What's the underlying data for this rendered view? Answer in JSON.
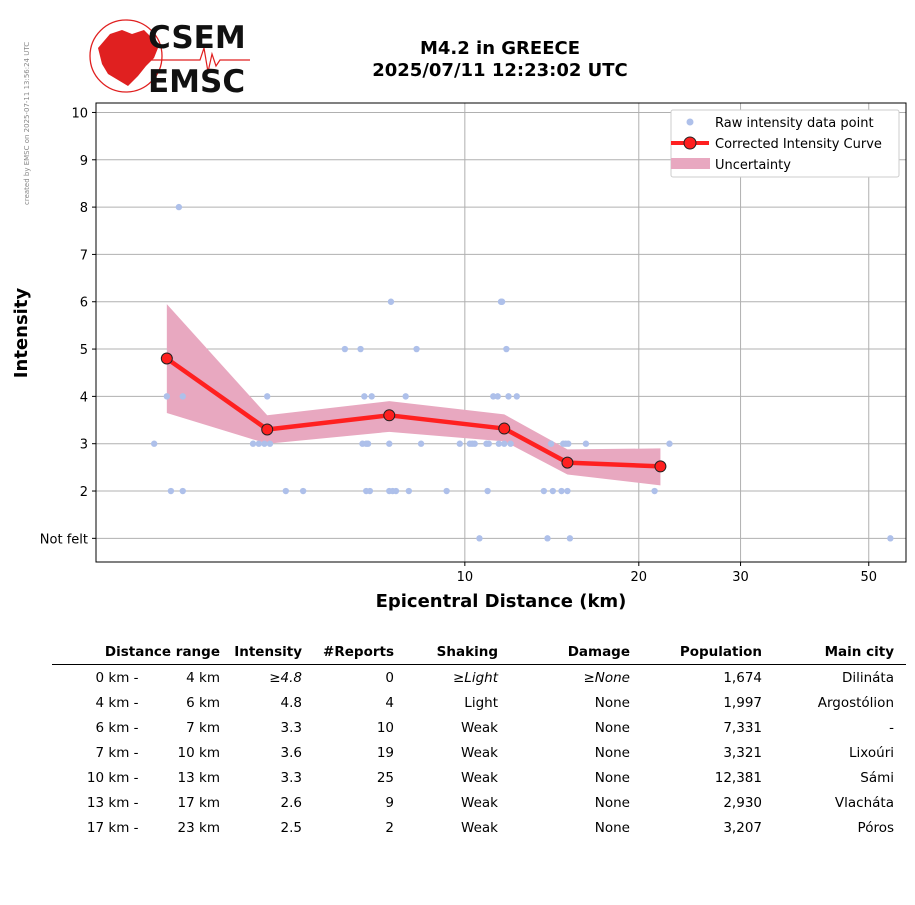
{
  "watermark": "created by EMSC on 2025-07-11 13:56:24 UTC",
  "logo": {
    "line1": "CSEM",
    "line2": "EMSC",
    "color": "#e02020"
  },
  "chart_data": {
    "type": "scatter",
    "title_line1": "M4.2 in GREECE",
    "title_line2": "2025/07/11 12:23:02 UTC",
    "xlabel": "Epicentral Distance (km)",
    "ylabel": "Intensity",
    "xscale": "log",
    "xlim": [
      2.3,
      58
    ],
    "xticks": [
      10,
      20,
      30,
      50
    ],
    "ylim": [
      0.5,
      10.2
    ],
    "yticks": [
      1,
      2,
      3,
      4,
      5,
      6,
      7,
      8,
      9,
      10
    ],
    "ytick_labels": [
      "Not felt",
      "2",
      "3",
      "4",
      "5",
      "6",
      "7",
      "8",
      "9",
      "10"
    ],
    "grid": true,
    "legend_position": "top-right",
    "legend": [
      "Raw intensity data point",
      "Corrected Intensity Curve",
      "Uncertainty"
    ],
    "colors": {
      "raw": "#aec0ea",
      "curve": "#ff2020",
      "marker_edge": "#222222",
      "uncertainty": "#e8a8c0"
    },
    "raw_points": [
      [
        2.9,
        3
      ],
      [
        3.05,
        4
      ],
      [
        3.1,
        2
      ],
      [
        3.2,
        8
      ],
      [
        3.25,
        4
      ],
      [
        3.25,
        2
      ],
      [
        4.3,
        3
      ],
      [
        4.4,
        3
      ],
      [
        4.5,
        3
      ],
      [
        4.55,
        4
      ],
      [
        4.6,
        3
      ],
      [
        4.9,
        2
      ],
      [
        5.25,
        2
      ],
      [
        6.2,
        5
      ],
      [
        6.6,
        5
      ],
      [
        6.65,
        3
      ],
      [
        6.7,
        4
      ],
      [
        6.75,
        3
      ],
      [
        6.75,
        2
      ],
      [
        6.8,
        3
      ],
      [
        6.85,
        2
      ],
      [
        6.9,
        4
      ],
      [
        7.4,
        3
      ],
      [
        7.45,
        6
      ],
      [
        7.4,
        2
      ],
      [
        7.5,
        2
      ],
      [
        7.6,
        2
      ],
      [
        7.9,
        4
      ],
      [
        8.0,
        2
      ],
      [
        8.25,
        5
      ],
      [
        8.4,
        3
      ],
      [
        9.3,
        2
      ],
      [
        9.8,
        3
      ],
      [
        10.2,
        3
      ],
      [
        10.3,
        3
      ],
      [
        10.4,
        3
      ],
      [
        10.6,
        1
      ],
      [
        10.9,
        3
      ],
      [
        10.95,
        2
      ],
      [
        11.0,
        3
      ],
      [
        11.2,
        4
      ],
      [
        11.4,
        4
      ],
      [
        11.45,
        3
      ],
      [
        11.55,
        6
      ],
      [
        11.6,
        6
      ],
      [
        11.7,
        3
      ],
      [
        11.8,
        5
      ],
      [
        11.9,
        4
      ],
      [
        12.0,
        3
      ],
      [
        12.3,
        4
      ],
      [
        13.7,
        2
      ],
      [
        13.9,
        1
      ],
      [
        14.1,
        3
      ],
      [
        14.2,
        2
      ],
      [
        14.7,
        2
      ],
      [
        14.8,
        3
      ],
      [
        14.95,
        3
      ],
      [
        15.05,
        2
      ],
      [
        15.1,
        3
      ],
      [
        15.2,
        1
      ],
      [
        16.2,
        3
      ],
      [
        21.3,
        2
      ],
      [
        22.6,
        3
      ],
      [
        54.5,
        1
      ]
    ],
    "curve": {
      "x": [
        3.05,
        4.55,
        7.4,
        11.7,
        15.05,
        21.8
      ],
      "y": [
        4.8,
        3.3,
        3.6,
        3.32,
        2.6,
        2.52
      ]
    },
    "uncertainty": {
      "x": [
        3.05,
        4.55,
        7.4,
        11.7,
        15.05,
        21.8
      ],
      "upper": [
        5.95,
        3.6,
        3.9,
        3.62,
        2.88,
        2.9
      ],
      "lower": [
        3.65,
        3.0,
        3.25,
        3.05,
        2.35,
        2.12
      ]
    }
  },
  "table": {
    "headers": [
      "Distance range",
      "Intensity",
      "#Reports",
      "Shaking",
      "Damage",
      "Population",
      "Main city"
    ],
    "rows": [
      {
        "from": "0 km -",
        "to": "4 km",
        "intensity": "≥4.8",
        "reports": "0",
        "shaking": "≥Light",
        "damage": "≥None",
        "population": "1,674",
        "city": "Dilináta"
      },
      {
        "from": "4 km -",
        "to": "6 km",
        "intensity": "4.8",
        "reports": "4",
        "shaking": "Light",
        "damage": "None",
        "population": "1,997",
        "city": "Argostólion"
      },
      {
        "from": "6 km -",
        "to": "7 km",
        "intensity": "3.3",
        "reports": "10",
        "shaking": "Weak",
        "damage": "None",
        "population": "7,331",
        "city": "-"
      },
      {
        "from": "7 km -",
        "to": "10 km",
        "intensity": "3.6",
        "reports": "19",
        "shaking": "Weak",
        "damage": "None",
        "population": "3,321",
        "city": "Lixoúri"
      },
      {
        "from": "10 km -",
        "to": "13 km",
        "intensity": "3.3",
        "reports": "25",
        "shaking": "Weak",
        "damage": "None",
        "population": "12,381",
        "city": "Sámi"
      },
      {
        "from": "13 km -",
        "to": "17 km",
        "intensity": "2.6",
        "reports": "9",
        "shaking": "Weak",
        "damage": "None",
        "population": "2,930",
        "city": "Vlacháta"
      },
      {
        "from": "17 km -",
        "to": "23 km",
        "intensity": "2.5",
        "reports": "2",
        "shaking": "Weak",
        "damage": "None",
        "population": "3,207",
        "city": "Póros"
      }
    ]
  }
}
